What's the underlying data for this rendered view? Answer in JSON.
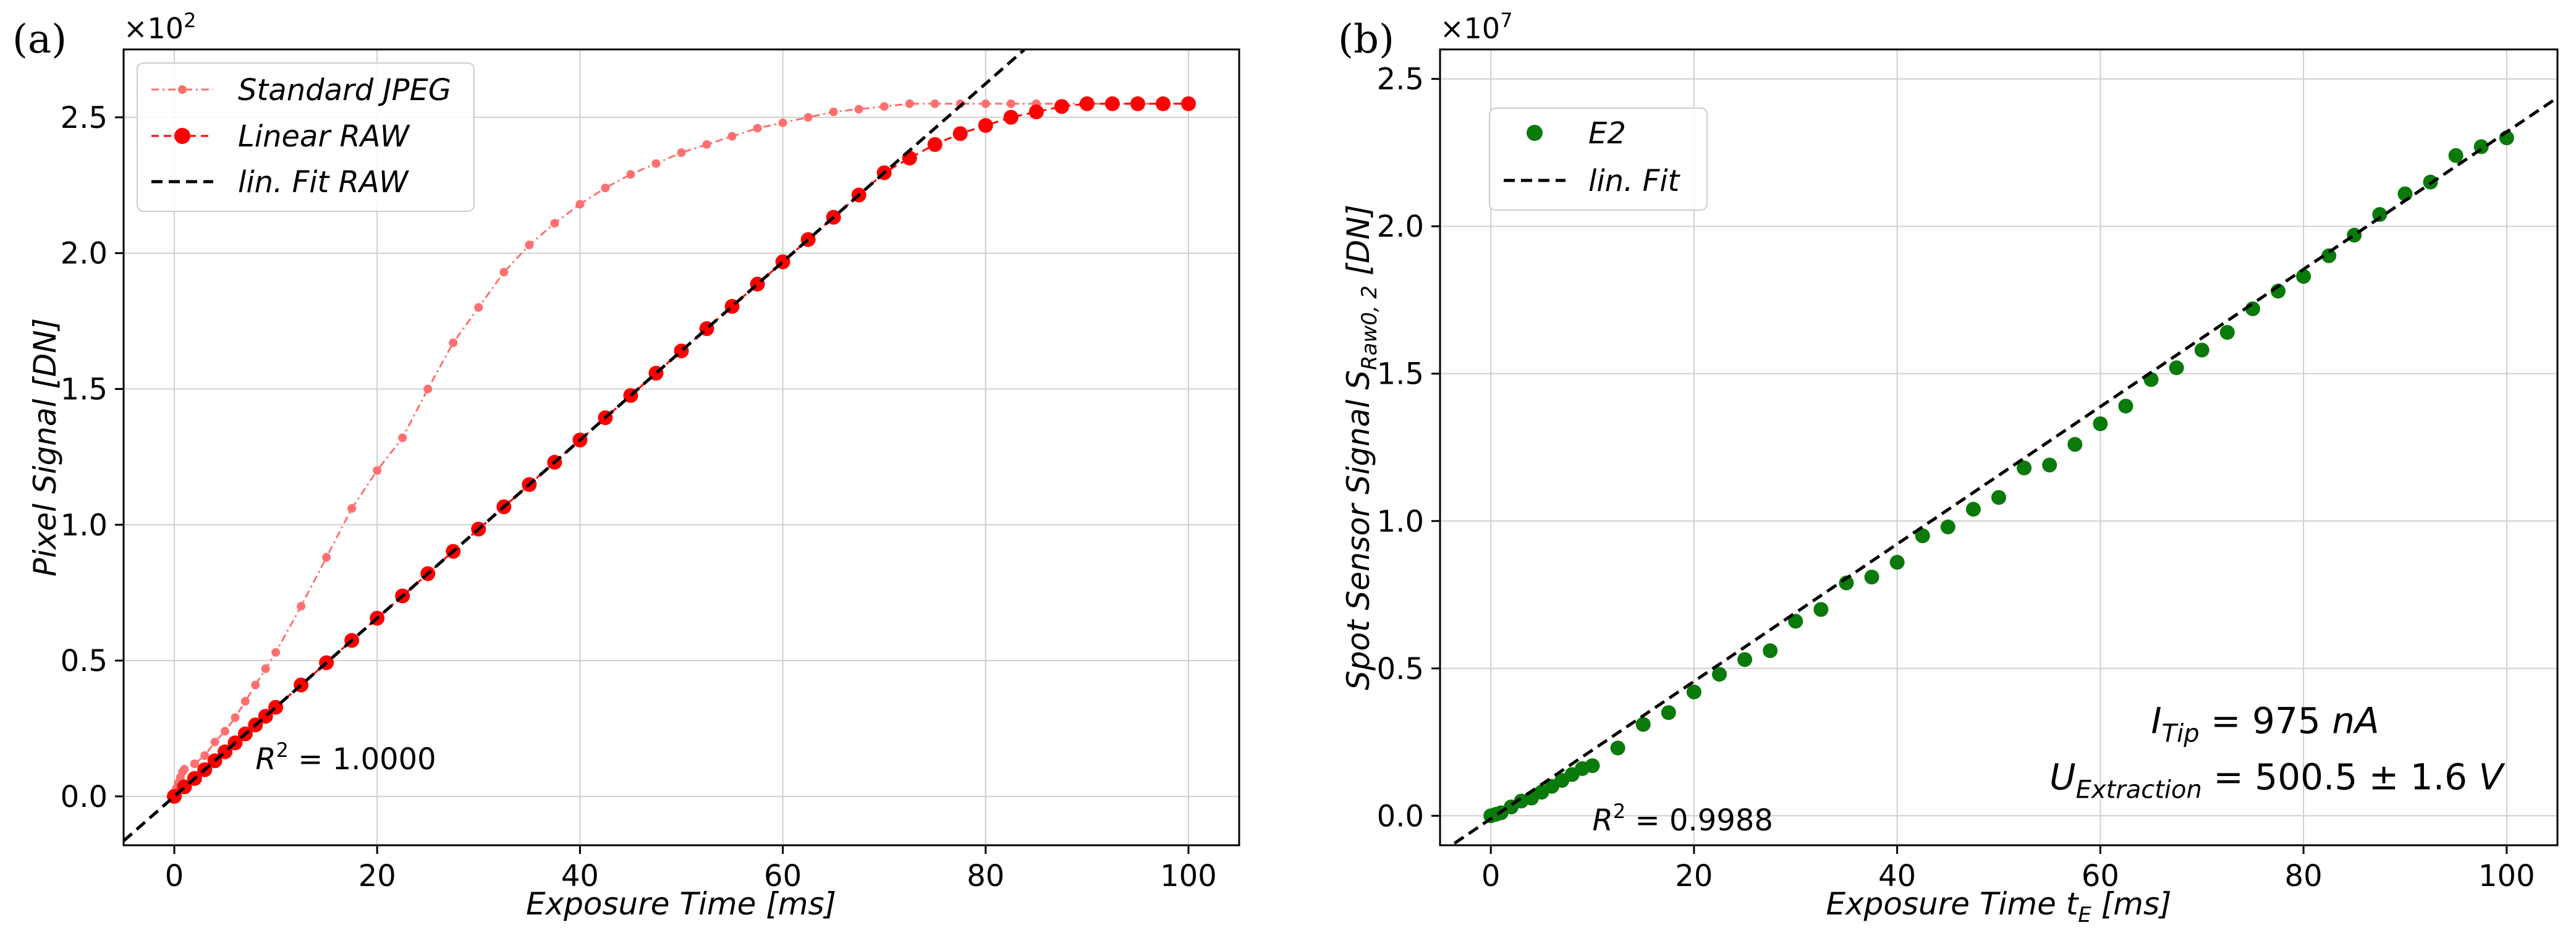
{
  "chart_data": [
    {
      "type": "line",
      "panel_label": "(a)",
      "xlabel": "Exposure Time [ms]",
      "ylabel_parts": [
        "Pixel Signal ",
        "[DN]"
      ],
      "y_scale_label": [
        "×10",
        "2"
      ],
      "xlim": [
        -5,
        105
      ],
      "ylim": [
        -0.18,
        2.75
      ],
      "x_ticks": [
        0,
        20,
        40,
        60,
        80,
        100
      ],
      "x_tick_labels": [
        "0",
        "20",
        "40",
        "60",
        "80",
        "100"
      ],
      "y_ticks": [
        0.0,
        0.5,
        1.0,
        1.5,
        2.0,
        2.5
      ],
      "y_tick_labels": [
        "0.0",
        "0.5",
        "1.0",
        "1.5",
        "2.0",
        "2.5"
      ],
      "grid": true,
      "legend_position": "top-left",
      "series": [
        {
          "name": "Standard JPEG",
          "color": "#ff6f6f",
          "style": "dash-dot-marker-small",
          "points": [
            [
              0.2,
              0.03
            ],
            [
              0.4,
              0.05
            ],
            [
              0.6,
              0.07
            ],
            [
              0.8,
              0.09
            ],
            [
              1,
              0.1
            ],
            [
              2,
              0.12
            ],
            [
              3,
              0.15
            ],
            [
              4,
              0.2
            ],
            [
              5,
              0.24
            ],
            [
              6,
              0.29
            ],
            [
              7,
              0.35
            ],
            [
              8,
              0.41
            ],
            [
              9,
              0.47
            ],
            [
              10,
              0.53
            ],
            [
              12.5,
              0.7
            ],
            [
              15,
              0.88
            ],
            [
              17.5,
              1.06
            ],
            [
              20,
              1.2
            ],
            [
              22.5,
              1.32
            ],
            [
              25,
              1.5
            ],
            [
              27.5,
              1.67
            ],
            [
              30,
              1.8
            ],
            [
              32.5,
              1.93
            ],
            [
              35,
              2.03
            ],
            [
              37.5,
              2.11
            ],
            [
              40,
              2.18
            ],
            [
              42.5,
              2.24
            ],
            [
              45,
              2.29
            ],
            [
              47.5,
              2.33
            ],
            [
              50,
              2.37
            ],
            [
              52.5,
              2.4
            ],
            [
              55,
              2.43
            ],
            [
              57.5,
              2.46
            ],
            [
              60,
              2.48
            ],
            [
              62.5,
              2.5
            ],
            [
              65,
              2.52
            ],
            [
              67.5,
              2.53
            ],
            [
              70,
              2.54
            ],
            [
              72.5,
              2.55
            ],
            [
              75,
              2.55
            ],
            [
              77.5,
              2.55
            ],
            [
              80,
              2.55
            ],
            [
              82.5,
              2.55
            ],
            [
              85,
              2.55
            ],
            [
              87.5,
              2.55
            ],
            [
              90,
              2.55
            ],
            [
              92.5,
              2.55
            ],
            [
              95,
              2.55
            ],
            [
              97.5,
              2.55
            ],
            [
              100,
              2.55
            ]
          ]
        },
        {
          "name": "Linear RAW",
          "color": "#ff0000",
          "style": "dash-marker-large",
          "points": [
            [
              0,
              0
            ],
            [
              1,
              0.035
            ],
            [
              2,
              0.066
            ],
            [
              3,
              0.098
            ],
            [
              4,
              0.131
            ],
            [
              5,
              0.164
            ],
            [
              6,
              0.197
            ],
            [
              7,
              0.23
            ],
            [
              8,
              0.263
            ],
            [
              9,
              0.295
            ],
            [
              10,
              0.328
            ],
            [
              12.5,
              0.41
            ],
            [
              15,
              0.492
            ],
            [
              17.5,
              0.574
            ],
            [
              20,
              0.656
            ],
            [
              22.5,
              0.738
            ],
            [
              25,
              0.82
            ],
            [
              27.5,
              0.902
            ],
            [
              30,
              0.984
            ],
            [
              32.5,
              1.066
            ],
            [
              35,
              1.148
            ],
            [
              37.5,
              1.23
            ],
            [
              40,
              1.312
            ],
            [
              42.5,
              1.394
            ],
            [
              45,
              1.476
            ],
            [
              47.5,
              1.558
            ],
            [
              50,
              1.64
            ],
            [
              52.5,
              1.722
            ],
            [
              55,
              1.804
            ],
            [
              57.5,
              1.886
            ],
            [
              60,
              1.968
            ],
            [
              62.5,
              2.05
            ],
            [
              65,
              2.132
            ],
            [
              67.5,
              2.214
            ],
            [
              70,
              2.296
            ],
            [
              72.5,
              2.35
            ],
            [
              75,
              2.4
            ],
            [
              77.5,
              2.44
            ],
            [
              80,
              2.47
            ],
            [
              82.5,
              2.5
            ],
            [
              85,
              2.52
            ],
            [
              87.5,
              2.54
            ],
            [
              90,
              2.55
            ],
            [
              92.5,
              2.55
            ],
            [
              95,
              2.55
            ],
            [
              97.5,
              2.55
            ],
            [
              100,
              2.55
            ]
          ]
        },
        {
          "name": "lin.  Fit RAW",
          "color": "#000000",
          "style": "dashed-line",
          "slope": 0.0328,
          "intercept": 0.0,
          "x_range": [
            -5,
            83.8
          ]
        }
      ],
      "annotations": [
        {
          "text_base": "R",
          "text_sup": "2",
          "text_rest": " = 1.0000",
          "x": 8,
          "y": 0.1
        }
      ]
    },
    {
      "type": "scatter",
      "panel_label": "(b)",
      "xlabel_parts": [
        "Exposure Time ",
        "t",
        "E",
        " [ms]"
      ],
      "ylabel_parts": [
        "Spot Sensor Signal ",
        "S",
        "Raw0, 2",
        " [DN]"
      ],
      "y_scale_label": [
        "×10",
        "7"
      ],
      "xlim": [
        -5,
        105
      ],
      "ylim": [
        -0.1,
        2.6
      ],
      "x_ticks": [
        0,
        20,
        40,
        60,
        80,
        100
      ],
      "x_tick_labels": [
        "0",
        "20",
        "40",
        "60",
        "80",
        "100"
      ],
      "y_ticks": [
        0.0,
        0.5,
        1.0,
        1.5,
        2.0,
        2.5
      ],
      "y_tick_labels": [
        "0.0",
        "0.5",
        "1.0",
        "1.5",
        "2.0",
        "2.5"
      ],
      "grid": true,
      "legend_position": "top-left",
      "series": [
        {
          "name": "E2",
          "color": "#0a7a0a",
          "style": "markers",
          "points": [
            [
              0,
              0
            ],
            [
              0.5,
              0.005
            ],
            [
              1,
              0.01
            ],
            [
              2,
              0.03
            ],
            [
              3,
              0.05
            ],
            [
              4,
              0.06
            ],
            [
              5,
              0.08
            ],
            [
              6,
              0.1
            ],
            [
              7,
              0.12
            ],
            [
              8,
              0.14
            ],
            [
              9,
              0.16
            ],
            [
              10,
              0.17
            ],
            [
              12.5,
              0.23
            ],
            [
              15,
              0.31
            ],
            [
              17.5,
              0.35
            ],
            [
              20,
              0.42
            ],
            [
              22.5,
              0.48
            ],
            [
              25,
              0.53
            ],
            [
              27.5,
              0.56
            ],
            [
              30,
              0.66
            ],
            [
              32.5,
              0.7
            ],
            [
              35,
              0.79
            ],
            [
              37.5,
              0.81
            ],
            [
              40,
              0.86
            ],
            [
              42.5,
              0.95
            ],
            [
              45,
              0.98
            ],
            [
              47.5,
              1.04
            ],
            [
              50,
              1.08
            ],
            [
              52.5,
              1.18
            ],
            [
              55,
              1.19
            ],
            [
              57.5,
              1.26
            ],
            [
              60,
              1.33
            ],
            [
              62.5,
              1.39
            ],
            [
              65,
              1.48
            ],
            [
              67.5,
              1.52
            ],
            [
              70,
              1.58
            ],
            [
              72.5,
              1.64
            ],
            [
              75,
              1.72
            ],
            [
              77.5,
              1.78
            ],
            [
              80,
              1.83
            ],
            [
              82.5,
              1.9
            ],
            [
              85,
              1.97
            ],
            [
              87.5,
              2.04
            ],
            [
              90,
              2.11
            ],
            [
              92.5,
              2.15
            ],
            [
              95,
              2.24
            ],
            [
              97.5,
              2.27
            ],
            [
              100,
              2.3
            ]
          ]
        },
        {
          "name": "lin.  Fit",
          "color": "#000000",
          "style": "dashed-line",
          "slope": 0.0233,
          "intercept": -0.01,
          "x_range": [
            -5,
            105
          ]
        }
      ],
      "annotations": [
        {
          "text_base": "R",
          "text_sup": "2",
          "text_rest": " = 0.9988",
          "x": 10,
          "y": -0.05
        },
        {
          "text_base": "I",
          "text_sub": "Tip",
          "text_rest": " = 975 ",
          "text_unit": "nA",
          "x": 65,
          "y": 0.28
        },
        {
          "text_base": "U",
          "text_sub": "Extraction",
          "text_rest": " = 500.5 ±  1.6 ",
          "text_unit": "V",
          "x": 55,
          "y": 0.09
        }
      ]
    }
  ]
}
